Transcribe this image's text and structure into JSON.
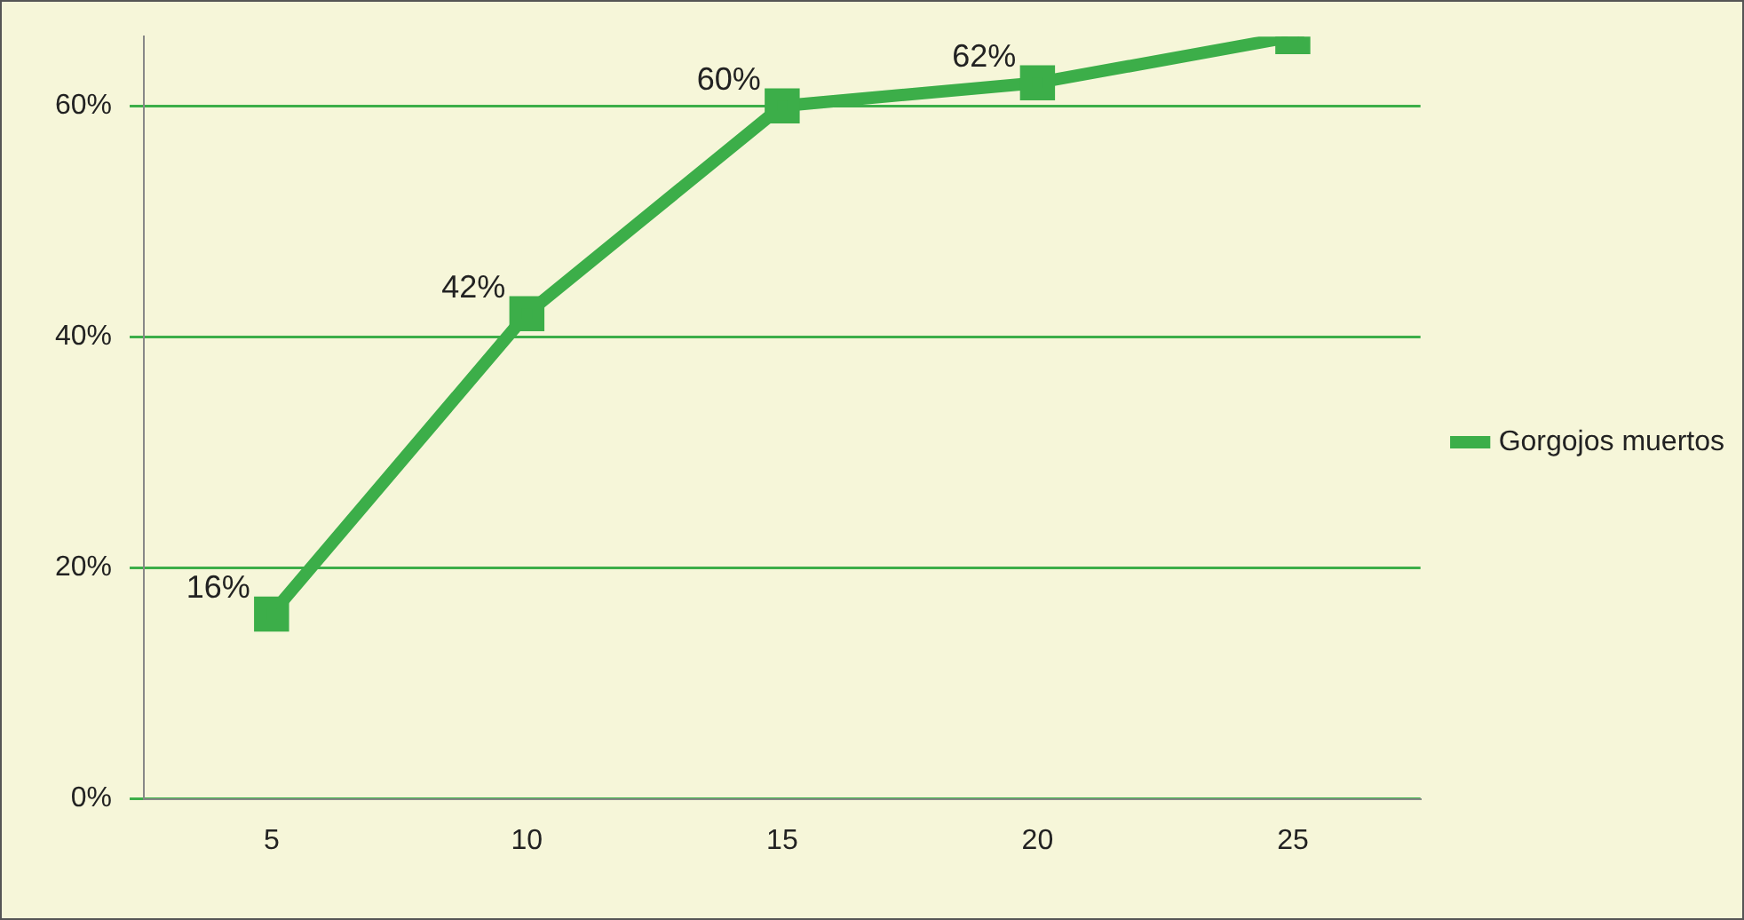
{
  "chart_data": {
    "type": "line",
    "categories": [
      "5",
      "10",
      "15",
      "20",
      "25"
    ],
    "series": [
      {
        "name": "Gorgojos muertos",
        "color": "#3cae49",
        "values": [
          16,
          42,
          60,
          62,
          66
        ],
        "value_labels": [
          "16%",
          "42%",
          "60%",
          "62%",
          null
        ]
      }
    ],
    "ylim": [
      0,
      66
    ],
    "yticks": [
      {
        "value": 0,
        "label": "0%"
      },
      {
        "value": 20,
        "label": "20%"
      },
      {
        "value": 40,
        "label": "40%"
      },
      {
        "value": 60,
        "label": "60%"
      }
    ],
    "grid": "y",
    "legend": "right",
    "marker": "square",
    "line_style": "solid"
  }
}
